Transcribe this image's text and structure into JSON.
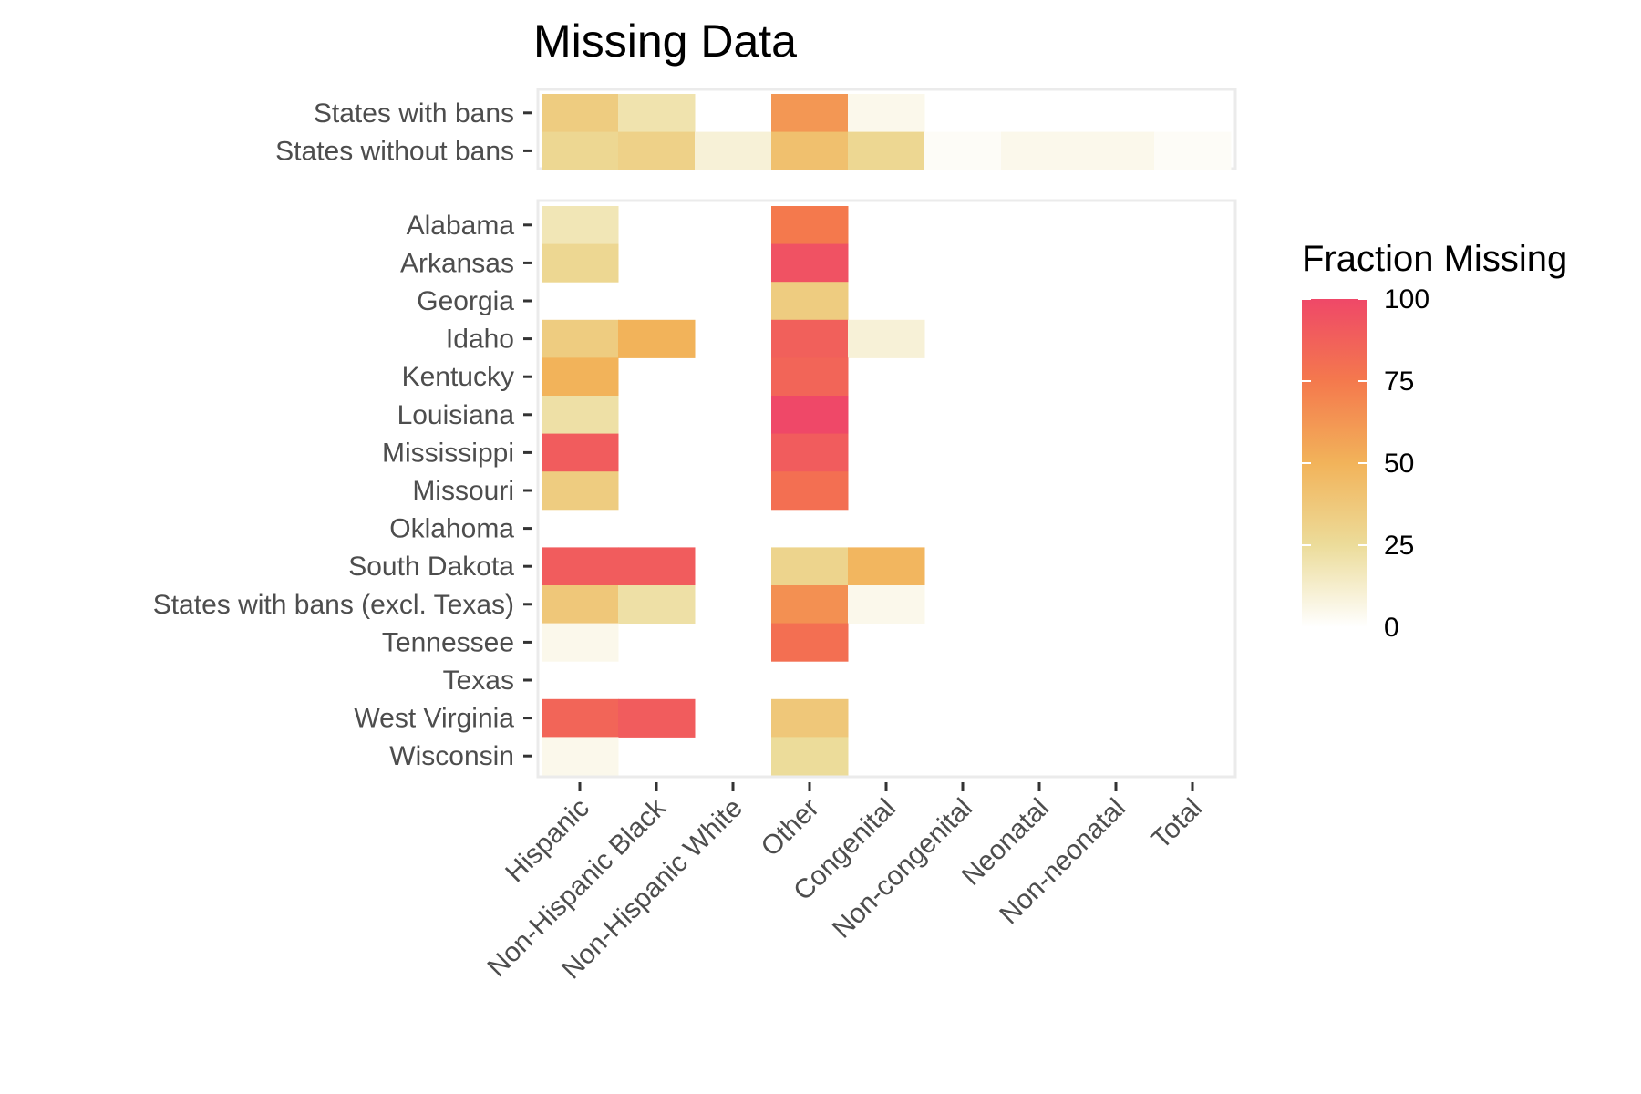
{
  "chart_data": {
    "type": "heatmap",
    "title": "Missing Data",
    "xlabel": "",
    "ylabel": "",
    "x_categories": [
      "Hispanic",
      "Non-Hispanic Black",
      "Non-Hispanic White",
      "Other",
      "Congenital",
      "Non-congenital",
      "Neonatal",
      "Non-neonatal",
      "Total"
    ],
    "facets": [
      {
        "name": "summary",
        "rows": [
          {
            "label": "States with bans",
            "values": [
              35,
              20,
              0,
              62,
              5,
              0,
              0,
              0,
              0
            ]
          },
          {
            "label": "States without bans",
            "values": [
              28,
              32,
              10,
              42,
              28,
              2,
              5,
              5,
              2
            ]
          }
        ]
      },
      {
        "name": "states",
        "rows": [
          {
            "label": "Alabama",
            "values": [
              18,
              0,
              0,
              75,
              0,
              0,
              0,
              0,
              0
            ]
          },
          {
            "label": "Arkansas",
            "values": [
              28,
              0,
              0,
              95,
              0,
              0,
              0,
              0,
              0
            ]
          },
          {
            "label": "Georgia",
            "values": [
              0,
              0,
              0,
              35,
              0,
              0,
              0,
              0,
              0
            ]
          },
          {
            "label": "Idaho",
            "values": [
              35,
              50,
              0,
              88,
              10,
              0,
              0,
              0,
              0
            ]
          },
          {
            "label": "Kentucky",
            "values": [
              50,
              0,
              0,
              85,
              0,
              0,
              0,
              0,
              0
            ]
          },
          {
            "label": "Louisiana",
            "values": [
              22,
              0,
              0,
              100,
              0,
              0,
              0,
              0,
              0
            ]
          },
          {
            "label": "Mississippi",
            "values": [
              90,
              0,
              0,
              90,
              0,
              0,
              0,
              0,
              0
            ]
          },
          {
            "label": "Missouri",
            "values": [
              35,
              0,
              0,
              80,
              0,
              0,
              0,
              0,
              0
            ]
          },
          {
            "label": "Oklahoma",
            "values": [
              0,
              0,
              0,
              0,
              0,
              0,
              0,
              0,
              0
            ]
          },
          {
            "label": "South Dakota",
            "values": [
              90,
              90,
              0,
              30,
              48,
              0,
              0,
              0,
              0
            ]
          },
          {
            "label": "States with bans (excl. Texas)",
            "values": [
              38,
              22,
              0,
              65,
              5,
              0,
              0,
              0,
              0
            ]
          },
          {
            "label": "Tennessee",
            "values": [
              5,
              0,
              0,
              80,
              0,
              0,
              0,
              0,
              0
            ]
          },
          {
            "label": "Texas",
            "values": [
              0,
              0,
              0,
              0,
              0,
              0,
              0,
              0,
              0
            ]
          },
          {
            "label": "West Virginia",
            "values": [
              85,
              90,
              0,
              38,
              0,
              0,
              0,
              0,
              0
            ]
          },
          {
            "label": "Wisconsin",
            "values": [
              5,
              0,
              0,
              25,
              0,
              0,
              0,
              0,
              0
            ]
          }
        ]
      }
    ],
    "legend": {
      "title": "Fraction Missing",
      "range": [
        0,
        100
      ],
      "ticks": [
        0,
        25,
        50,
        75,
        100
      ],
      "colors": [
        "#ffffff",
        "#ecdc9a",
        "#f2b35a",
        "#f4794d",
        "#ef4868"
      ],
      "placement": "right"
    },
    "panel_background": "#ffffff",
    "panel_border": "#ebebeb"
  }
}
